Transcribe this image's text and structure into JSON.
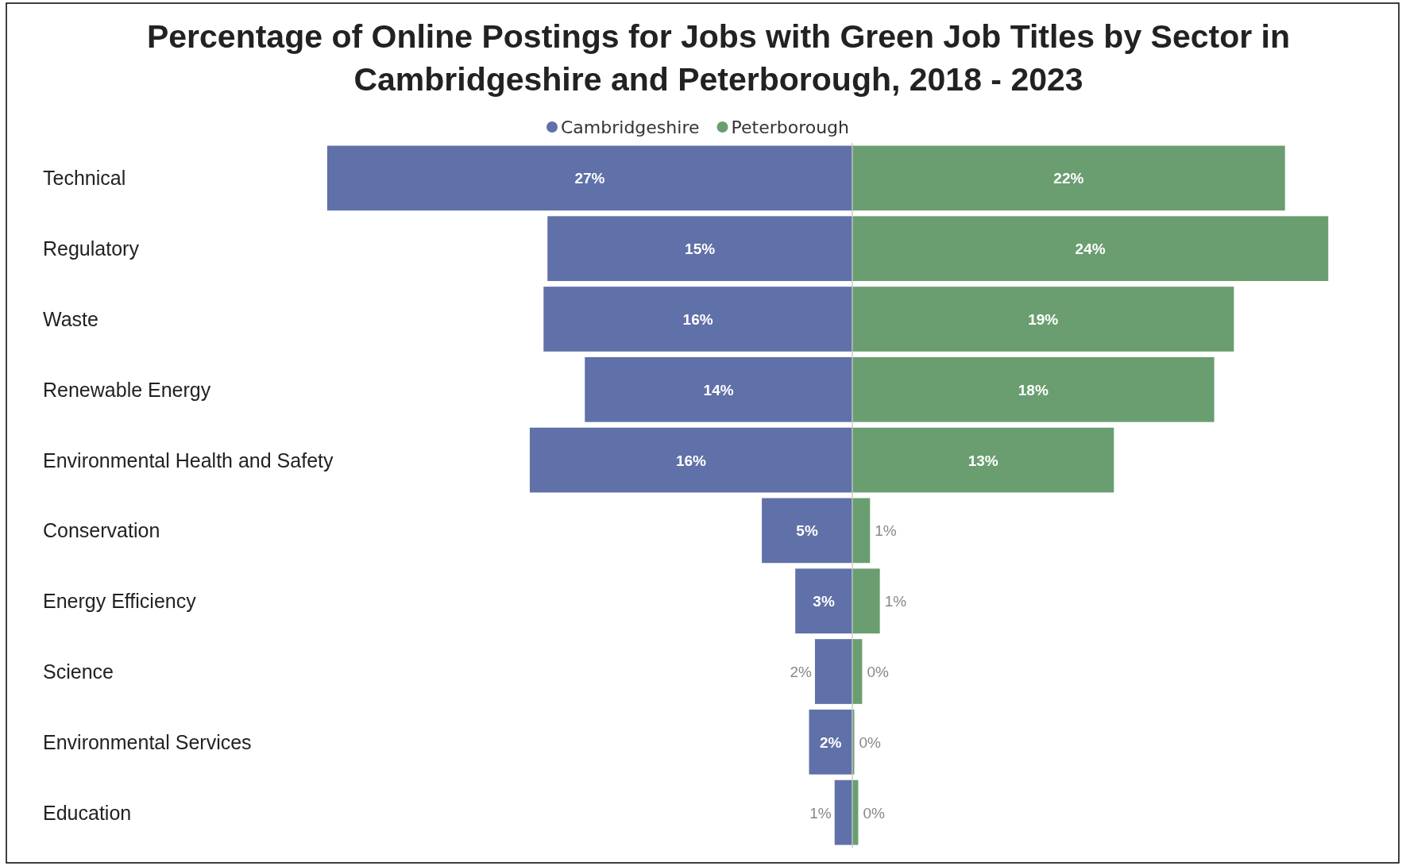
{
  "chart_data": [
    {
      "type": "bar",
      "orientation": "horizontal",
      "title": "Percentage of Online Postings for Jobs with Green Job Titles by Sector in Cambridgeshire and Peterborough, 2018 - 2023",
      "categories": [
        "Technical",
        "Regulatory",
        "Waste",
        "Renewable Energy",
        "Environmental Health and Safety",
        "Conservation",
        "Energy Efficiency",
        "Science",
        "Environmental Services",
        "Education"
      ],
      "series": [
        {
          "name": "Cambridgeshire",
          "color": "#6070a8",
          "values": [
            26.7,
            15.5,
            15.7,
            13.6,
            16.4,
            4.6,
            2.9,
            1.9,
            2.2,
            0.9
          ],
          "value_labels": [
            "27%",
            "15%",
            "16%",
            "14%",
            "16%",
            "5%",
            "3%",
            "2%",
            "2%",
            "1%"
          ]
        }
      ],
      "legend": "top"
    },
    {
      "type": "bar",
      "orientation": "horizontal",
      "categories": [
        null,
        null,
        null,
        null,
        null,
        null,
        null,
        null,
        null,
        null
      ],
      "series": [
        {
          "name": "Peterborough",
          "color": "#6a9e70",
          "values": [
            22.0,
            24.2,
            19.4,
            18.4,
            13.3,
            0.9,
            1.4,
            0.5,
            0.1,
            0.3
          ],
          "value_labels": [
            "22%",
            "24%",
            "19%",
            "18%",
            "13%",
            "1%",
            "1%",
            "0%",
            "0%",
            "0%"
          ]
        }
      ],
      "legend": "top"
    }
  ]
}
